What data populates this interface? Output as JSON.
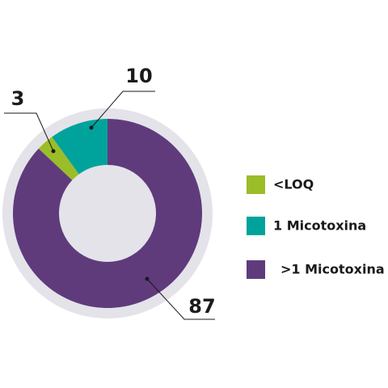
{
  "chart_data": {
    "type": "donut",
    "categories": [
      "<LOQ",
      "1 Micotoxina",
      ">1 Micotoxina"
    ],
    "values": [
      3,
      10,
      87
    ],
    "colors": [
      "#9bbd28",
      "#00a39b",
      "#5f3b7c"
    ],
    "legend": "right"
  }
}
